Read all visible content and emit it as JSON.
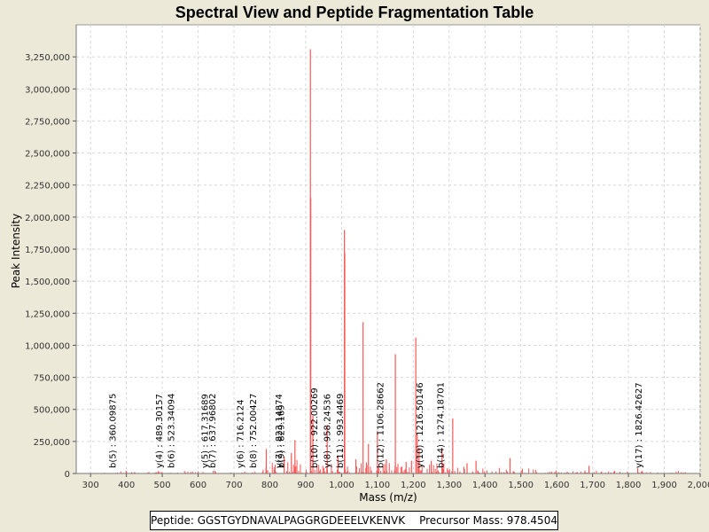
{
  "chart_data": {
    "type": "spectrum",
    "title": "Spectral View and Peptide Fragmentation Table",
    "xlabel": "Mass (m/z)",
    "ylabel": "Peak Intensity",
    "xlim": [
      260,
      2000
    ],
    "ylim": [
      0,
      3500000
    ],
    "x_ticks": [
      300,
      400,
      500,
      600,
      700,
      800,
      900,
      1000,
      1100,
      1200,
      1300,
      1400,
      1500,
      1600,
      1700,
      1800,
      1900,
      2000
    ],
    "x_tick_labels": [
      "300",
      "400",
      "500",
      "600",
      "700",
      "800",
      "900",
      "1,000",
      "1,100",
      "1,200",
      "1,300",
      "1,400",
      "1,500",
      "1,600",
      "1,700",
      "1,800",
      "1,900",
      "2,000"
    ],
    "y_ticks": [
      0,
      250000,
      500000,
      750000,
      1000000,
      1250000,
      1500000,
      1750000,
      2000000,
      2250000,
      2500000,
      2750000,
      3000000,
      3250000
    ],
    "y_tick_labels": [
      "0",
      "250,000",
      "500,000",
      "750,000",
      "1,000,000",
      "1,250,000",
      "1,500,000",
      "1,750,000",
      "2,000,000",
      "2,250,000",
      "2,500,000",
      "2,750,000",
      "3,000,000",
      "3,250,000"
    ],
    "peak_color": "#ff5555",
    "grid_color": "#d8d8d8",
    "major_peaks": [
      {
        "mz": 913,
        "intensity": 3310000
      },
      {
        "mz": 914,
        "intensity": 2150000
      },
      {
        "mz": 1008,
        "intensity": 1900000
      },
      {
        "mz": 1009,
        "intensity": 1720000
      },
      {
        "mz": 1060,
        "intensity": 1180000
      },
      {
        "mz": 1207,
        "intensity": 1060000
      },
      {
        "mz": 1150,
        "intensity": 930000
      },
      {
        "mz": 1310,
        "intensity": 430000
      },
      {
        "mz": 920,
        "intensity": 450000
      },
      {
        "mz": 960,
        "intensity": 380000
      },
      {
        "mz": 1100,
        "intensity": 330000
      },
      {
        "mz": 1211,
        "intensity": 300000
      },
      {
        "mz": 1075,
        "intensity": 230000
      },
      {
        "mz": 1280,
        "intensity": 200000
      },
      {
        "mz": 1216,
        "intensity": 200000
      },
      {
        "mz": 870,
        "intensity": 260000
      },
      {
        "mz": 790,
        "intensity": 190000
      },
      {
        "mz": 1470,
        "intensity": 120000
      },
      {
        "mz": 1040,
        "intensity": 110000
      },
      {
        "mz": 1125,
        "intensity": 110000
      },
      {
        "mz": 1250,
        "intensity": 100000
      },
      {
        "mz": 1350,
        "intensity": 80000
      },
      {
        "mz": 1375,
        "intensity": 100000
      },
      {
        "mz": 1690,
        "intensity": 60000
      },
      {
        "mz": 1826,
        "intensity": 40000
      },
      {
        "mz": 860,
        "intensity": 160000
      },
      {
        "mz": 840,
        "intensity": 130000
      },
      {
        "mz": 990,
        "intensity": 140000
      },
      {
        "mz": 1180,
        "intensity": 90000
      },
      {
        "mz": 1195,
        "intensity": 100000
      }
    ],
    "annotations": [
      {
        "mz": 360.09875,
        "label": "b(5) : 360.09875"
      },
      {
        "mz": 489.30157,
        "label": "y(4) : 489.30157"
      },
      {
        "mz": 523.34094,
        "label": "b(6) : 523.34094"
      },
      {
        "mz": 617.31689,
        "label": "y(5) : 617.31689"
      },
      {
        "mz": 637.96802,
        "label": "b(7) : 637.96802"
      },
      {
        "mz": 716.2124,
        "label": "y(6) : 716.2124"
      },
      {
        "mz": 752.00427,
        "label": "b(8) : 752.00427"
      },
      {
        "mz": 823.14874,
        "label": "y(7) : 823.14874"
      },
      {
        "mz": 829.169,
        "label": "b(9) : 829.169"
      },
      {
        "mz": 922.00269,
        "label": "b(10) : 922.00269"
      },
      {
        "mz": 958.24536,
        "label": "y(8) : 958.24536"
      },
      {
        "mz": 993.4469,
        "label": "b(11) : 993.4469"
      },
      {
        "mz": 1106.28662,
        "label": "b(12) : 1106.28662"
      },
      {
        "mz": 1216.50146,
        "label": "y(10) : 1216.50146"
      },
      {
        "mz": 1274.18701,
        "label": "b(14) : 1274.18701"
      },
      {
        "mz": 1826.42627,
        "label": "y(17) : 1826.42627"
      }
    ]
  },
  "footer": {
    "peptide_label": "Peptide: GGSTGYDNAVALPAGGRGDEEELVKENVK",
    "precursor_label": "Precursor Mass: 978.4504"
  }
}
